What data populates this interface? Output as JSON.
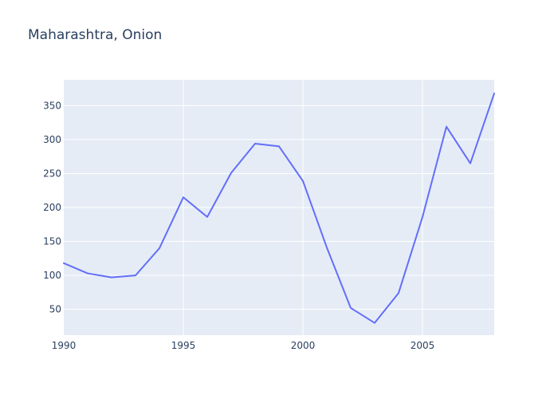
{
  "chart_data": {
    "type": "line",
    "title": "Maharashtra, Onion",
    "xlabel": "",
    "ylabel": "",
    "grid": true,
    "legend": false,
    "colors": {
      "line": "#636efa",
      "plot_bg": "#e5ecf6",
      "grid": "#ffffff",
      "text": "#2a3f5f"
    },
    "xlim": [
      1990,
      2008
    ],
    "ylim": [
      12,
      388
    ],
    "x_ticks": [
      1990,
      1995,
      2000,
      2005
    ],
    "y_ticks": [
      50,
      100,
      150,
      200,
      250,
      300,
      350
    ],
    "series": [
      {
        "x": [
          1990,
          1991,
          1992,
          1993,
          1994,
          1995,
          1996,
          1997,
          1998,
          1999,
          2000,
          2001,
          2002,
          2003,
          2004,
          2005,
          2006,
          2007,
          2008
        ],
        "y": [
          118,
          103,
          97,
          100,
          140,
          215,
          186,
          251,
          294,
          290,
          239,
          141,
          52,
          30,
          74,
          186,
          319,
          265,
          368
        ]
      }
    ]
  }
}
